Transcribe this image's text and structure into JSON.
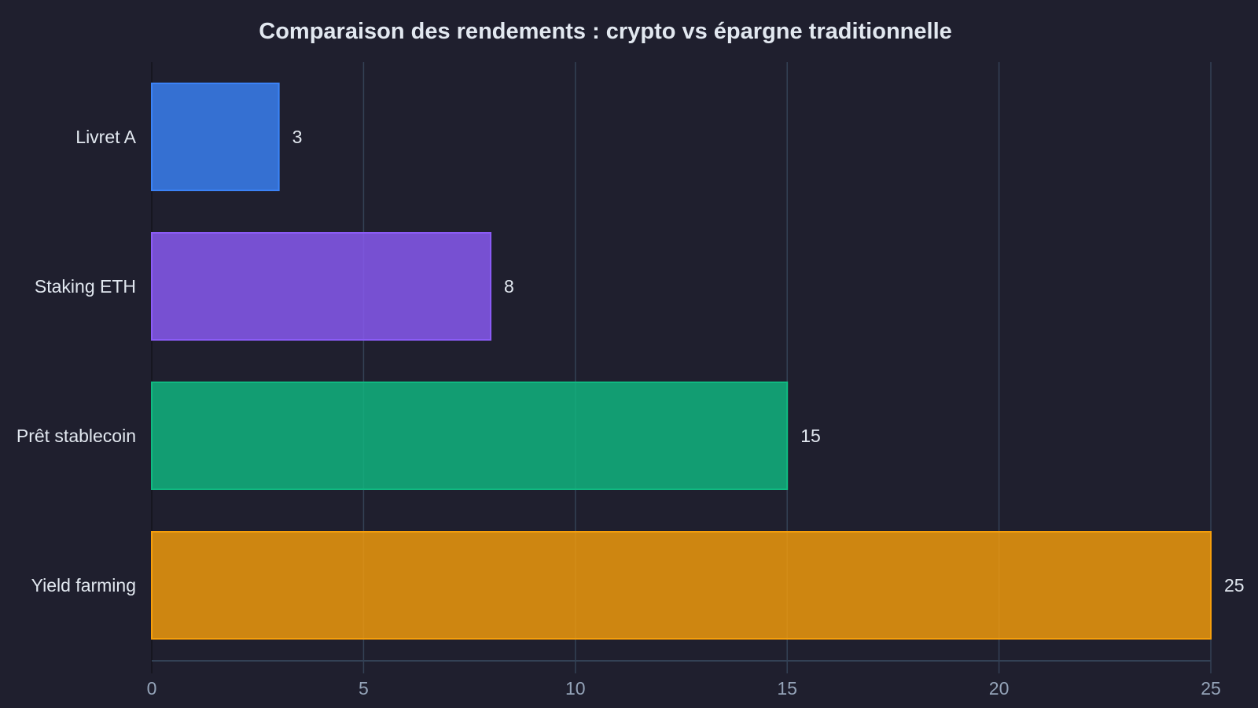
{
  "chart_data": {
    "type": "bar",
    "orientation": "horizontal",
    "title": "Comparaison des rendements : crypto vs épargne traditionnelle",
    "categories": [
      "Livret A",
      "Staking ETH",
      "Prêt stablecoin",
      "Yield farming"
    ],
    "values": [
      3,
      8,
      15,
      25
    ],
    "data_labels": [
      "3",
      "8",
      "15",
      "25"
    ],
    "colors": [
      "#3b82f6",
      "#8b5cf6",
      "#10b981",
      "#f59e0b"
    ],
    "xlabel": "",
    "ylabel": "",
    "xlim": [
      0,
      25
    ],
    "xticks": [
      "0",
      "5",
      "10",
      "15",
      "20",
      "25"
    ],
    "grid": "vertical",
    "background": "#1f1f2e"
  }
}
